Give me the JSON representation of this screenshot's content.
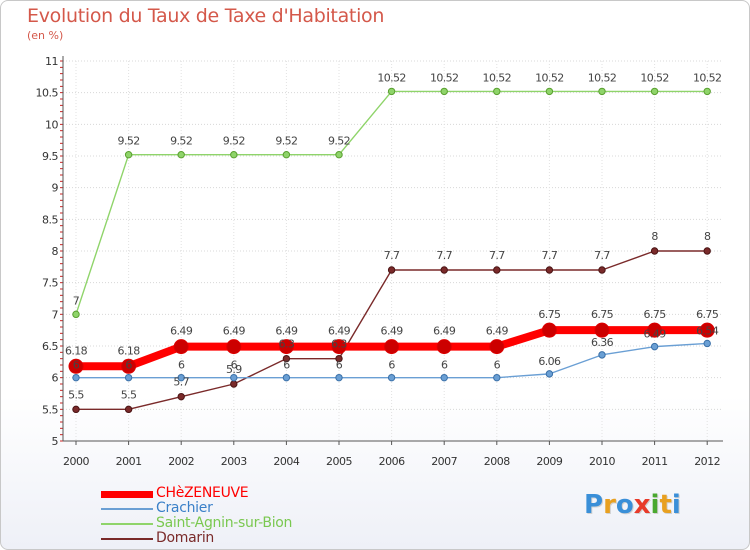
{
  "chart_data": {
    "type": "line",
    "title": "Evolution du Taux de Taxe d'Habitation",
    "subtitle": "(en %)",
    "x": [
      "2000",
      "2001",
      "2002",
      "2003",
      "2004",
      "2005",
      "2006",
      "2007",
      "2008",
      "2009",
      "2010",
      "2011",
      "2012"
    ],
    "ylim": [
      5,
      11
    ],
    "yticks": [
      "5",
      "5.5",
      "6",
      "6.5",
      "7",
      "7.5",
      "8",
      "8.5",
      "9",
      "9.5",
      "10",
      "10.5",
      "11"
    ],
    "grid": true,
    "legend_position": "bottom-left",
    "series": [
      {
        "name": "CHèZENEUVE",
        "color": "#ff0000",
        "values": [
          6.18,
          6.18,
          6.49,
          6.49,
          6.49,
          6.49,
          6.49,
          6.49,
          6.49,
          6.75,
          6.75,
          6.75,
          6.75
        ],
        "labels": [
          "6.18",
          "6.18",
          "6.49",
          "6.49",
          "6.49",
          "6.49",
          "6.49",
          "6.49",
          "6.49",
          "6.75",
          "6.75",
          "6.75",
          "6.75"
        ]
      },
      {
        "name": "Crachier",
        "color": "#6a9fd4",
        "values": [
          6,
          6,
          6,
          6,
          6,
          6,
          6,
          6,
          6,
          6.06,
          6.36,
          6.49,
          6.54
        ],
        "labels": [
          "6",
          "6",
          "6",
          "6",
          "6",
          "6",
          "6",
          "6",
          "6",
          "6.06",
          "6.36",
          "6.49",
          "6.54"
        ]
      },
      {
        "name": "Saint-Agnin-sur-Bion",
        "color": "#8fd46a",
        "values": [
          7,
          9.52,
          9.52,
          9.52,
          9.52,
          9.52,
          10.52,
          10.52,
          10.52,
          10.52,
          10.52,
          10.52,
          10.52
        ],
        "labels": [
          "7",
          "9.52",
          "9.52",
          "9.52",
          "9.52",
          "9.52",
          "10.52",
          "10.52",
          "10.52",
          "10.52",
          "10.52",
          "10.52",
          "10.52"
        ]
      },
      {
        "name": "Domarin",
        "color": "#7a2a2a",
        "values": [
          5.5,
          5.5,
          5.7,
          5.9,
          6.3,
          6.3,
          7.7,
          7.7,
          7.7,
          7.7,
          7.7,
          8,
          8
        ],
        "labels": [
          "5.5",
          "5.5",
          "5.7",
          "5.9",
          "6.3",
          "6.3",
          "7.7",
          "7.7",
          "7.7",
          "7.7",
          "7.7",
          "8",
          "8"
        ]
      }
    ]
  },
  "brand": {
    "letters": [
      "P",
      "r",
      "o",
      "x",
      "i",
      "t",
      "i"
    ],
    "colors": [
      "#3a8fd8",
      "#e8a020",
      "#3a8fd8",
      "#e83a2a",
      "#4aa830",
      "#e8a020",
      "#3a8fd8"
    ]
  }
}
